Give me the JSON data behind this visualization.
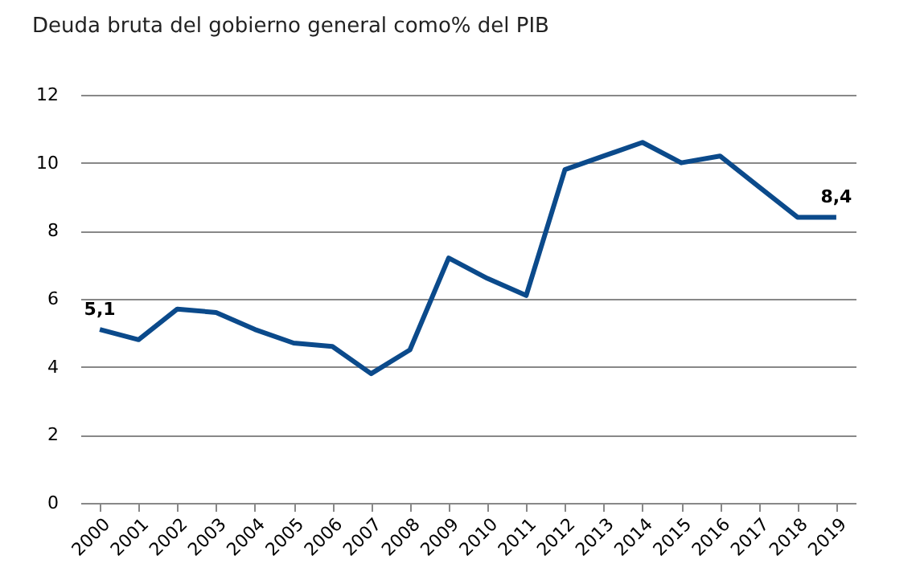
{
  "chart_data": {
    "type": "line",
    "title": "Deuda bruta del gobierno general como% del PIB",
    "categories": [
      "2000",
      "2001",
      "2002",
      "2003",
      "2004",
      "2005",
      "2006",
      "2007",
      "2008",
      "2009",
      "2010",
      "2011",
      "2012",
      "2013",
      "2014",
      "2015",
      "2016",
      "2017",
      "2018",
      "2019"
    ],
    "series": [
      {
        "color": "#0b4a8b",
        "values": [
          5.1,
          4.8,
          5.7,
          5.6,
          5.1,
          4.7,
          4.6,
          3.8,
          4.5,
          7.2,
          6.6,
          6.1,
          9.8,
          10.2,
          10.6,
          10.0,
          10.2,
          9.3,
          8.4,
          8.4
        ],
        "value_labels": [
          "5,1",
          null,
          null,
          null,
          null,
          null,
          null,
          null,
          null,
          null,
          null,
          null,
          null,
          null,
          null,
          null,
          null,
          null,
          null,
          "8,4"
        ]
      }
    ],
    "ylim": [
      0,
      12
    ],
    "yticks": [
      0,
      2,
      4,
      6,
      8,
      10,
      12
    ],
    "grid": "y",
    "marker": "none",
    "line_style": "solid"
  }
}
